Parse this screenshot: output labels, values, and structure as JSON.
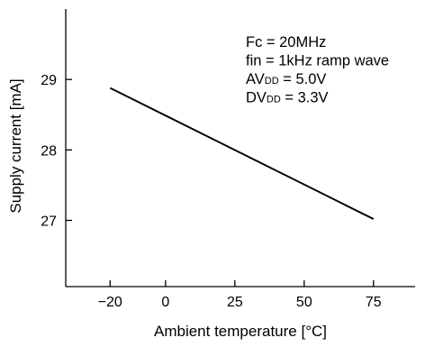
{
  "chart_data": {
    "type": "line",
    "xlabel": "Ambient temperature [°C]",
    "ylabel": "Supply current [mA]",
    "x_ticks": [
      -20,
      0,
      25,
      50,
      75
    ],
    "x_tick_labels": [
      "−20",
      "0",
      "25",
      "50",
      "75"
    ],
    "y_ticks": [
      27,
      28,
      29
    ],
    "y_tick_labels": [
      "27",
      "28",
      "29"
    ],
    "xlim": [
      -36,
      90
    ],
    "ylim": [
      26.06,
      30.0
    ],
    "grid": false,
    "x": [
      -20,
      75
    ],
    "y": [
      28.88,
      27.02
    ],
    "annotations": [
      {
        "prefix": "Fc = 20MHz",
        "sub": "",
        "suffix": ""
      },
      {
        "prefix": "fin = 1kHz ramp wave",
        "sub": "",
        "suffix": ""
      },
      {
        "prefix": "AV",
        "sub": "DD",
        "suffix": " = 5.0V"
      },
      {
        "prefix": "DV",
        "sub": "DD",
        "suffix": " = 3.3V"
      }
    ],
    "line_color": "#000000"
  }
}
